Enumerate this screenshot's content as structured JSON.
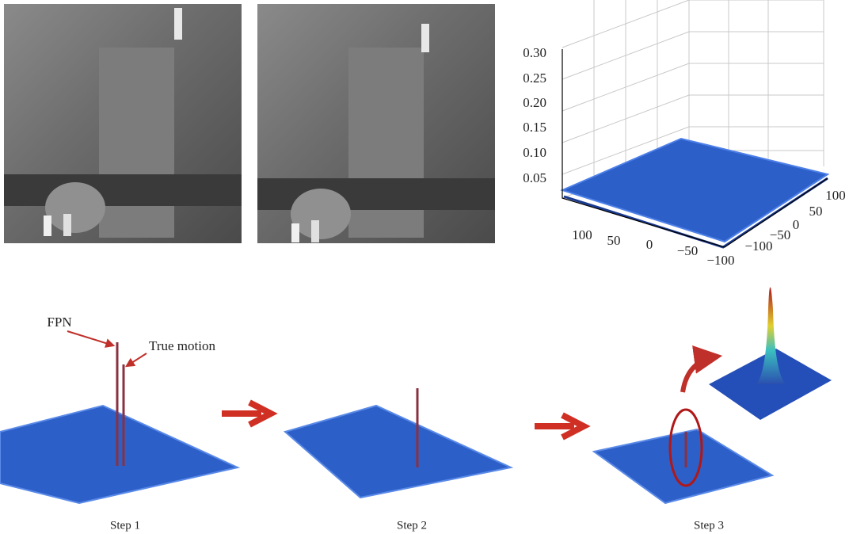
{
  "plot": {
    "z_ticks": [
      "0.30",
      "0.25",
      "0.20",
      "0.15",
      "0.10",
      "0.05"
    ],
    "x_ticks": [
      "100",
      "50",
      "0",
      "−50",
      "−100"
    ],
    "y_ticks": [
      "100",
      "50",
      "0",
      "−50",
      "−100"
    ]
  },
  "annotations": {
    "fpn": "FPN",
    "true_motion": "True motion"
  },
  "steps": [
    "Step 1",
    "Step 2",
    "Step 3"
  ]
}
